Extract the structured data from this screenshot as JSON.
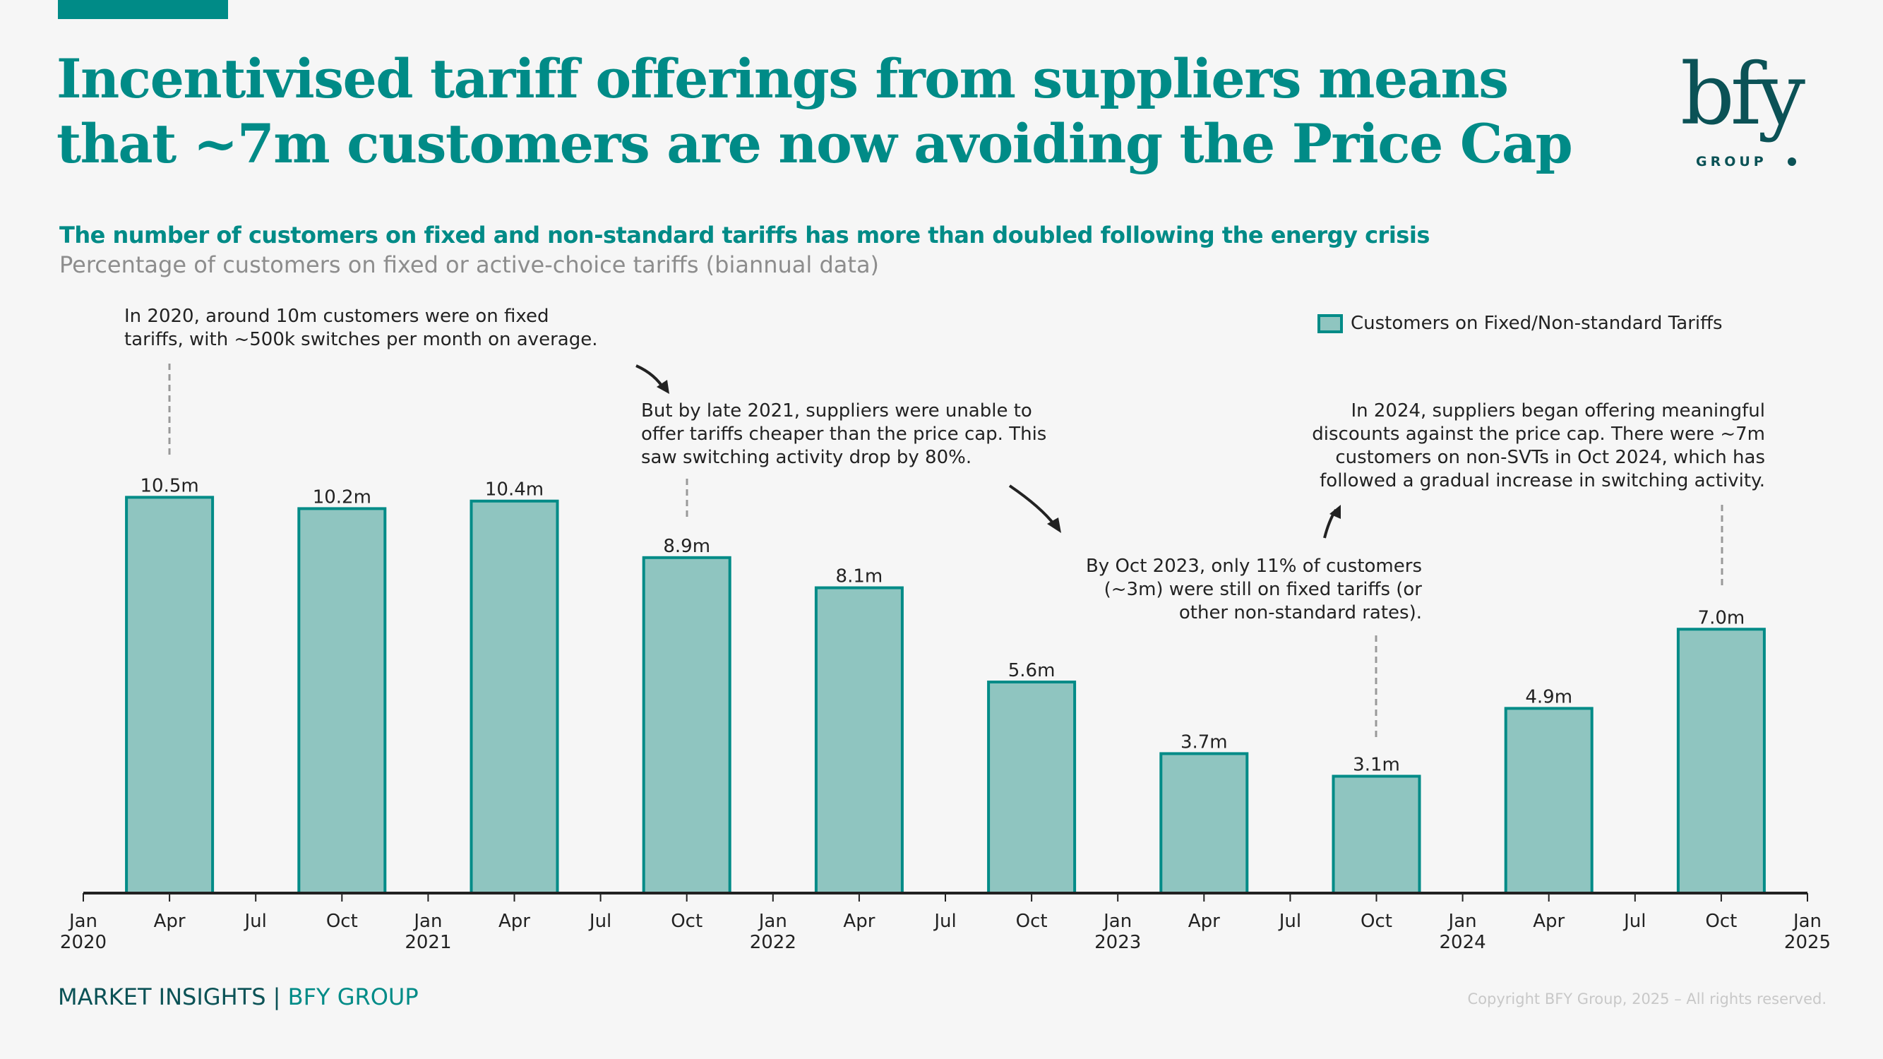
{
  "header": {
    "title_line1": "Incentivised tariff offerings from suppliers means",
    "title_line2": "that ~7m customers are now avoiding the Price Cap",
    "subtitle": "The number of customers on fixed and non-standard tariffs has more than doubled following the energy crisis",
    "subsubtitle": "Percentage of customers on fixed or active-choice tariffs (biannual data)"
  },
  "logo": {
    "wordmark": "bfy",
    "tagline": "GROUP"
  },
  "annotations": [
    {
      "text": "In 2020, around 10m customers were on fixed\ntariffs, with ~500k switches per month on average."
    },
    {
      "text": "But by late 2021, suppliers were unable to\noffer tariffs cheaper than the price cap. This\nsaw switching activity drop by 80%."
    },
    {
      "text": "By Oct 2023, only 11% of customers\n(~3m) were still on fixed tariffs (or\nother non-standard rates)."
    },
    {
      "text": "In 2024, suppliers began offering meaningful\ndiscounts against the price cap. There were ~7m\ncustomers on non-SVTs in Oct 2024, which has\nfollowed a gradual increase in switching activity."
    }
  ],
  "footer": {
    "brand_left": "MARKET INSIGHTS",
    "separator": " | ",
    "brand_right": "BFY GROUP",
    "copyright": "Copyright BFY Group, 2025 – All rights reserved."
  },
  "colors": {
    "accent": "#008b87",
    "bar_fill": "#8fc5c0",
    "bar_stroke": "#008b87",
    "dark_teal": "#0b5256",
    "axis": "#222222"
  },
  "chart_data": {
    "type": "bar",
    "title": "The number of customers on fixed and non-standard tariffs has more than doubled following the energy crisis",
    "subtitle": "Percentage of customers on fixed or active-choice tariffs (biannual data)",
    "xlabel": "",
    "ylabel": "",
    "unit": "m",
    "grid": false,
    "legend": {
      "position": "top-right",
      "entries": [
        "Customers on Fixed/Non-standard Tariffs"
      ]
    },
    "series": [
      {
        "name": "Customers on Fixed/Non-standard Tariffs",
        "points": [
          {
            "date": "2020-04",
            "value": 10.5,
            "label": "10.5m"
          },
          {
            "date": "2020-10",
            "value": 10.2,
            "label": "10.2m"
          },
          {
            "date": "2021-04",
            "value": 10.4,
            "label": "10.4m"
          },
          {
            "date": "2021-10",
            "value": 8.9,
            "label": "8.9m"
          },
          {
            "date": "2022-04",
            "value": 8.1,
            "label": "8.1m"
          },
          {
            "date": "2022-10",
            "value": 5.6,
            "label": "5.6m"
          },
          {
            "date": "2023-04",
            "value": 3.7,
            "label": "3.7m"
          },
          {
            "date": "2023-10",
            "value": 3.1,
            "label": "3.1m"
          },
          {
            "date": "2024-04",
            "value": 4.9,
            "label": "4.9m"
          },
          {
            "date": "2024-10",
            "value": 7.0,
            "label": "7.0m"
          }
        ]
      }
    ],
    "xlim": [
      "2020-01",
      "2025-01"
    ],
    "ylim": [
      0,
      11.5
    ],
    "x_ticks": [
      {
        "date": "2020-01",
        "label": "Jan",
        "year": "2020"
      },
      {
        "date": "2020-04",
        "label": "Apr",
        "year": ""
      },
      {
        "date": "2020-07",
        "label": "Jul",
        "year": ""
      },
      {
        "date": "2020-10",
        "label": "Oct",
        "year": ""
      },
      {
        "date": "2021-01",
        "label": "Jan",
        "year": "2021"
      },
      {
        "date": "2021-04",
        "label": "Apr",
        "year": ""
      },
      {
        "date": "2021-07",
        "label": "Jul",
        "year": ""
      },
      {
        "date": "2021-10",
        "label": "Oct",
        "year": ""
      },
      {
        "date": "2022-01",
        "label": "Jan",
        "year": "2022"
      },
      {
        "date": "2022-04",
        "label": "Apr",
        "year": ""
      },
      {
        "date": "2022-07",
        "label": "Jul",
        "year": ""
      },
      {
        "date": "2022-10",
        "label": "Oct",
        "year": ""
      },
      {
        "date": "2023-01",
        "label": "Jan",
        "year": "2023"
      },
      {
        "date": "2023-04",
        "label": "Apr",
        "year": ""
      },
      {
        "date": "2023-07",
        "label": "Jul",
        "year": ""
      },
      {
        "date": "2023-10",
        "label": "Oct",
        "year": ""
      },
      {
        "date": "2024-01",
        "label": "Jan",
        "year": "2024"
      },
      {
        "date": "2024-04",
        "label": "Apr",
        "year": ""
      },
      {
        "date": "2024-07",
        "label": "Jul",
        "year": ""
      },
      {
        "date": "2024-10",
        "label": "Oct",
        "year": ""
      },
      {
        "date": "2025-01",
        "label": "Jan",
        "year": "2025"
      }
    ]
  }
}
